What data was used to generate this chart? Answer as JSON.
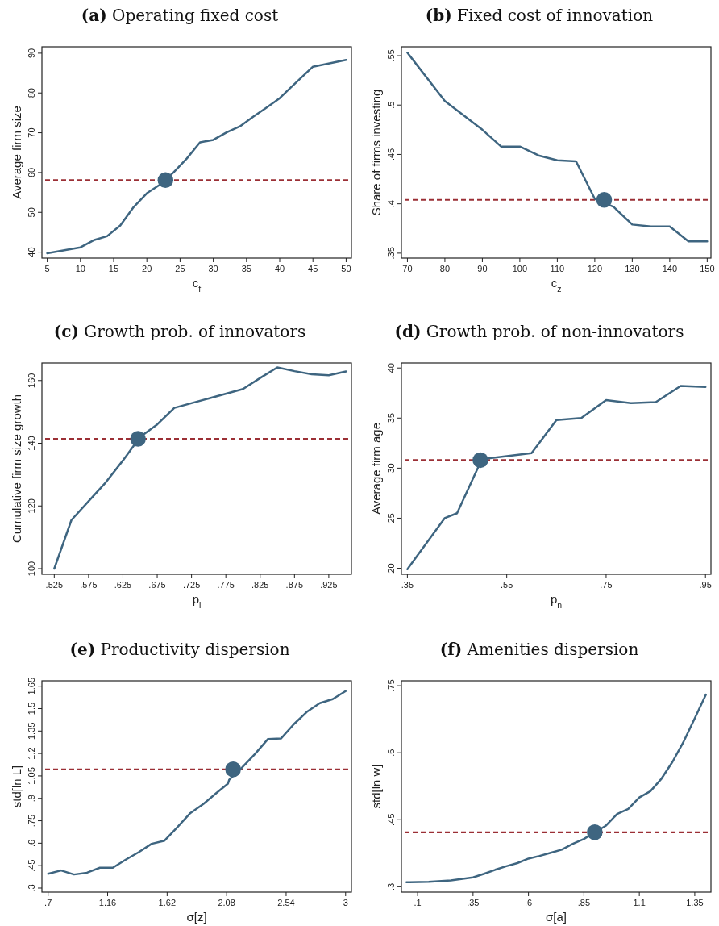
{
  "chart_data": [
    {
      "type": "line",
      "title": "(a) Operating fixed cost",
      "xlabel": "c$_{f}$",
      "ylabel": "Average firm size",
      "xlim": [
        4.2,
        50.8
      ],
      "ylim": [
        38.5,
        91.6
      ],
      "xticks": [
        5,
        10,
        15,
        20,
        25,
        30,
        35,
        40,
        45,
        50
      ],
      "yticks": [
        40,
        50,
        60,
        70,
        80,
        90
      ],
      "series": [
        {
          "type": "line",
          "color": "#3e6580",
          "x": [
            5,
            10,
            12,
            14,
            16,
            18,
            20,
            22,
            24,
            26,
            28,
            30,
            32,
            34,
            36,
            38,
            40,
            42,
            45,
            50
          ],
          "values": [
            39.7,
            41.2,
            43,
            44,
            46.7,
            51.3,
            54.8,
            57,
            60,
            63.5,
            67.6,
            68.2,
            70.1,
            71.6,
            74,
            76.3,
            78.7,
            81.9,
            86.6,
            88.3
          ]
        },
        {
          "type": "scatter",
          "color": "#3e6580",
          "marker": "circle",
          "x": [
            22.8
          ],
          "values": [
            58.1
          ]
        }
      ],
      "ref_lines": [
        {
          "axis": "y",
          "value": 58.1,
          "color": "#9b2f35",
          "line_style": "dashed"
        }
      ]
    },
    {
      "type": "line",
      "title": "(b) Fixed cost of innovation",
      "xlabel": "c$_{z}$",
      "ylabel": "Share of firms investing",
      "xlim": [
        68.4,
        151
      ],
      "ylim": [
        0.345,
        0.559
      ],
      "xticks": [
        70,
        80,
        90,
        100,
        110,
        120,
        130,
        140,
        150
      ],
      "yticks": [
        {
          "value": 0.35,
          "label": ".35"
        },
        {
          "value": 0.4,
          "label": ".4"
        },
        {
          "value": 0.45,
          "label": ".45"
        },
        {
          "value": 0.5,
          "label": ".5"
        },
        {
          "value": 0.55,
          "label": ".55"
        }
      ],
      "series": [
        {
          "type": "line",
          "color": "#3e6580",
          "x": [
            70,
            80,
            90,
            95,
            100,
            105,
            110,
            115,
            120,
            125,
            130,
            135,
            140,
            145,
            150
          ],
          "values": [
            0.553,
            0.504,
            0.475,
            0.458,
            0.458,
            0.449,
            0.444,
            0.443,
            0.405,
            0.397,
            0.379,
            0.377,
            0.377,
            0.362,
            0.362
          ]
        },
        {
          "type": "scatter",
          "color": "#3e6580",
          "marker": "circle",
          "x": [
            122.5
          ],
          "values": [
            0.404
          ]
        }
      ],
      "ref_lines": [
        {
          "axis": "y",
          "value": 0.404,
          "color": "#9b2f35",
          "line_style": "dashed"
        }
      ]
    },
    {
      "type": "line",
      "title": "(c) Growth prob. of innovators",
      "xlabel": "p$_{i}$",
      "ylabel": "Cumulative firm size growth",
      "xlim": [
        0.507,
        0.958
      ],
      "ylim": [
        98.2,
        165.6
      ],
      "xticks": [
        {
          "value": 0.525,
          "label": ".525"
        },
        {
          "value": 0.575,
          "label": ".575"
        },
        {
          "value": 0.625,
          "label": ".625"
        },
        {
          "value": 0.675,
          "label": ".675"
        },
        {
          "value": 0.725,
          "label": ".725"
        },
        {
          "value": 0.775,
          "label": ".775"
        },
        {
          "value": 0.825,
          "label": ".825"
        },
        {
          "value": 0.875,
          "label": ".875"
        },
        {
          "value": 0.925,
          "label": ".925"
        }
      ],
      "yticks": [
        100,
        120,
        140,
        160
      ],
      "series": [
        {
          "type": "line",
          "color": "#3e6580",
          "x": [
            0.525,
            0.55,
            0.575,
            0.6,
            0.625,
            0.65,
            0.675,
            0.7,
            0.75,
            0.8,
            0.825,
            0.85,
            0.875,
            0.9,
            0.925,
            0.95
          ],
          "values": [
            100,
            115.5,
            121.5,
            127.5,
            134.5,
            142,
            146,
            151.3,
            154.3,
            157.3,
            160.8,
            164.2,
            163,
            162,
            161.7,
            162.9
          ]
        },
        {
          "type": "scatter",
          "color": "#3e6580",
          "marker": "circle",
          "x": [
            0.647
          ],
          "values": [
            141.4
          ]
        }
      ],
      "ref_lines": [
        {
          "axis": "y",
          "value": 141.4,
          "color": "#9b2f35",
          "line_style": "dashed"
        }
      ]
    },
    {
      "type": "line",
      "title": "(d) Growth prob. of non-innovators",
      "xlabel": "p$_{n}$",
      "ylabel": "Average firm age",
      "xlim": [
        0.338,
        0.961
      ],
      "ylim": [
        19.4,
        40.5
      ],
      "xticks": [
        {
          "value": 0.35,
          "label": ".35"
        },
        {
          "value": 0.55,
          "label": ".55"
        },
        {
          "value": 0.75,
          "label": ".75"
        },
        {
          "value": 0.95,
          "label": ".95"
        }
      ],
      "yticks": [
        20,
        25,
        30,
        35,
        40
      ],
      "series": [
        {
          "type": "line",
          "color": "#3e6580",
          "x": [
            0.35,
            0.425,
            0.45,
            0.5,
            0.55,
            0.6,
            0.65,
            0.7,
            0.75,
            0.8,
            0.85,
            0.9,
            0.95
          ],
          "values": [
            19.9,
            25,
            25.5,
            30.9,
            31.2,
            31.5,
            34.8,
            35,
            36.8,
            36.5,
            36.6,
            38.2,
            38.1
          ]
        },
        {
          "type": "scatter",
          "color": "#3e6580",
          "marker": "circle",
          "x": [
            0.497
          ],
          "values": [
            30.8
          ]
        }
      ],
      "ref_lines": [
        {
          "axis": "y",
          "value": 30.8,
          "color": "#9b2f35",
          "line_style": "dashed"
        }
      ]
    },
    {
      "type": "line",
      "title": "(e) Productivity dispersion",
      "xlabel": "σ[z]",
      "ylabel": "std[ln L]",
      "xlim": [
        0.652,
        3.045
      ],
      "ylim": [
        0.273,
        1.686
      ],
      "xticks": [
        {
          "value": 0.7,
          "label": ".7"
        },
        1.16,
        1.62,
        2.08,
        2.54,
        3
      ],
      "yticks": [
        {
          "value": 0.3,
          "label": ".3"
        },
        {
          "value": 0.45,
          "label": ".45"
        },
        {
          "value": 0.6,
          "label": ".6"
        },
        {
          "value": 0.75,
          "label": ".75"
        },
        {
          "value": 0.9,
          "label": ".9"
        },
        1.05,
        1.2,
        1.35,
        1.5,
        1.65
      ],
      "series": [
        {
          "type": "line",
          "color": "#3e6580",
          "x": [
            0.7,
            0.8,
            0.9,
            1.0,
            1.1,
            1.2,
            1.3,
            1.4,
            1.5,
            1.6,
            1.7,
            1.8,
            1.9,
            2.0,
            2.09,
            2.1,
            2.2,
            2.3,
            2.4,
            2.5,
            2.6,
            2.7,
            2.8,
            2.9,
            3.0
          ],
          "values": [
            0.396,
            0.418,
            0.391,
            0.403,
            0.436,
            0.436,
            0.49,
            0.54,
            0.596,
            0.617,
            0.708,
            0.802,
            0.862,
            0.935,
            0.998,
            1.025,
            1.107,
            1.197,
            1.297,
            1.3,
            1.396,
            1.478,
            1.536,
            1.563,
            1.617
          ]
        },
        {
          "type": "scatter",
          "color": "#3e6580",
          "marker": "circle",
          "x": [
            2.13
          ],
          "values": [
            1.094
          ]
        }
      ],
      "ref_lines": [
        {
          "axis": "y",
          "value": 1.094,
          "color": "#9b2f35",
          "line_style": "dashed"
        }
      ]
    },
    {
      "type": "line",
      "title": "(f) Amenities dispersion",
      "xlabel": "σ[a]",
      "ylabel": "std[ln w]",
      "xlim": [
        0.027,
        1.423
      ],
      "ylim": [
        0.288,
        0.761
      ],
      "xticks": [
        {
          "value": 0.1,
          "label": ".1"
        },
        {
          "value": 0.35,
          "label": ".35"
        },
        {
          "value": 0.6,
          "label": ".6"
        },
        {
          "value": 0.85,
          "label": ".85"
        },
        1.1,
        1.35
      ],
      "yticks": [
        {
          "value": 0.3,
          "label": ".3"
        },
        {
          "value": 0.45,
          "label": ".45"
        },
        {
          "value": 0.6,
          "label": ".6"
        },
        {
          "value": 0.75,
          "label": ".75"
        }
      ],
      "series": [
        {
          "type": "line",
          "color": "#3e6580",
          "x": [
            0.05,
            0.15,
            0.25,
            0.35,
            0.4,
            0.45,
            0.5,
            0.55,
            0.6,
            0.65,
            0.7,
            0.75,
            0.8,
            0.85,
            0.9,
            0.95,
            1.0,
            1.05,
            1.1,
            1.15,
            1.2,
            1.25,
            1.3,
            1.35,
            1.4
          ],
          "values": [
            0.31,
            0.311,
            0.314,
            0.321,
            0.329,
            0.338,
            0.346,
            0.353,
            0.363,
            0.369,
            0.376,
            0.383,
            0.396,
            0.407,
            0.422,
            0.437,
            0.463,
            0.474,
            0.5,
            0.514,
            0.542,
            0.58,
            0.625,
            0.677,
            0.73
          ]
        },
        {
          "type": "scatter",
          "color": "#3e6580",
          "marker": "circle",
          "x": [
            0.899
          ],
          "values": [
            0.422
          ]
        }
      ],
      "ref_lines": [
        {
          "axis": "y",
          "value": 0.422,
          "color": "#9b2f35",
          "line_style": "dashed"
        }
      ]
    }
  ]
}
